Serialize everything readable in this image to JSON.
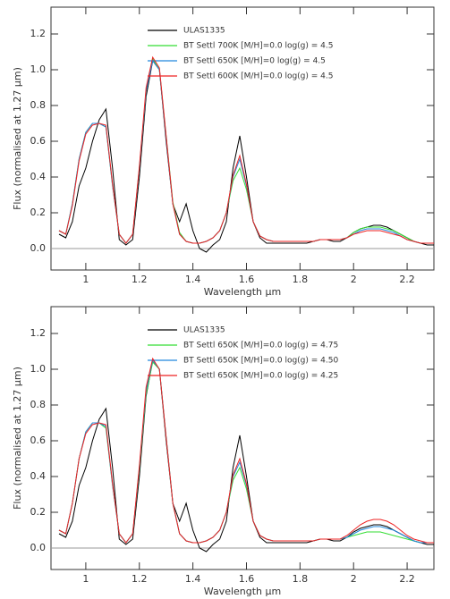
{
  "chart_data": [
    {
      "type": "line",
      "x_label": "Wavelength μm",
      "y_label": "Flux (normalised at 1.27 μm)",
      "xlim": [
        0.87,
        2.3
      ],
      "ylim": [
        -0.12,
        1.35
      ],
      "xticks": [
        1.0,
        1.2,
        1.4,
        1.6,
        1.8,
        2.0,
        2.2
      ],
      "yticks": [
        {
          "value": 0,
          "label": "0.0"
        },
        0.2,
        0.4,
        0.6,
        0.8,
        {
          "value": 1,
          "label": "1.0"
        },
        1.2
      ],
      "x": [
        0.9,
        0.925,
        0.95,
        0.975,
        1.0,
        1.025,
        1.05,
        1.075,
        1.1,
        1.125,
        1.15,
        1.175,
        1.2,
        1.225,
        1.25,
        1.275,
        1.3,
        1.325,
        1.35,
        1.375,
        1.4,
        1.425,
        1.45,
        1.475,
        1.5,
        1.525,
        1.55,
        1.575,
        1.6,
        1.625,
        1.65,
        1.675,
        1.7,
        1.725,
        1.75,
        1.775,
        1.8,
        1.825,
        1.85,
        1.875,
        1.9,
        1.925,
        1.95,
        1.975,
        2.0,
        2.025,
        2.05,
        2.075,
        2.1,
        2.125,
        2.15,
        2.175,
        2.2,
        2.225,
        2.25,
        2.275,
        2.3
      ],
      "series": [
        {
          "name": "ULAS1335",
          "color": "#000000",
          "values": [
            0.08,
            0.06,
            0.15,
            0.35,
            0.45,
            0.6,
            0.72,
            0.78,
            0.45,
            0.05,
            0.02,
            0.05,
            0.4,
            0.85,
            1.05,
            1.0,
            0.6,
            0.25,
            0.15,
            0.25,
            0.1,
            0.0,
            -0.02,
            0.02,
            0.05,
            0.15,
            0.45,
            0.63,
            0.4,
            0.15,
            0.06,
            0.03,
            0.03,
            0.03,
            0.03,
            0.03,
            0.03,
            0.03,
            0.04,
            0.05,
            0.05,
            0.04,
            0.04,
            0.06,
            0.09,
            0.11,
            0.12,
            0.13,
            0.13,
            0.12,
            0.1,
            0.08,
            0.06,
            0.04,
            0.03,
            0.02,
            0.02
          ]
        },
        {
          "name": "BT Settl 700K [M/H]=0.0 log(g) = 4.5",
          "color": "#33dd33",
          "values": [
            0.1,
            0.08,
            0.25,
            0.5,
            0.65,
            0.7,
            0.7,
            0.68,
            0.35,
            0.08,
            0.03,
            0.08,
            0.45,
            0.88,
            1.06,
            1.0,
            0.63,
            0.26,
            0.09,
            0.04,
            0.03,
            0.03,
            0.04,
            0.06,
            0.1,
            0.2,
            0.38,
            0.45,
            0.33,
            0.15,
            0.07,
            0.05,
            0.04,
            0.04,
            0.04,
            0.04,
            0.04,
            0.04,
            0.04,
            0.05,
            0.05,
            0.05,
            0.05,
            0.06,
            0.09,
            0.11,
            0.12,
            0.12,
            0.12,
            0.11,
            0.1,
            0.08,
            0.06,
            0.04,
            0.03,
            0.03,
            0.03
          ]
        },
        {
          "name": "BT Settl 650K [M/H]=0 log(g) = 4.5",
          "color": "#2288dd",
          "values": [
            0.1,
            0.08,
            0.25,
            0.5,
            0.65,
            0.7,
            0.7,
            0.68,
            0.35,
            0.08,
            0.03,
            0.08,
            0.45,
            0.88,
            1.05,
            1.0,
            0.62,
            0.25,
            0.08,
            0.04,
            0.03,
            0.03,
            0.04,
            0.06,
            0.1,
            0.2,
            0.4,
            0.5,
            0.35,
            0.15,
            0.07,
            0.05,
            0.04,
            0.04,
            0.04,
            0.04,
            0.04,
            0.04,
            0.04,
            0.05,
            0.05,
            0.05,
            0.05,
            0.06,
            0.08,
            0.1,
            0.11,
            0.11,
            0.11,
            0.1,
            0.09,
            0.07,
            0.05,
            0.04,
            0.03,
            0.03,
            0.03
          ]
        },
        {
          "name": "BT Settl 600K [M/H]=0.0 log(g) = 4.5",
          "color": "#ee2222",
          "values": [
            0.1,
            0.08,
            0.24,
            0.49,
            0.64,
            0.69,
            0.7,
            0.69,
            0.36,
            0.08,
            0.03,
            0.08,
            0.46,
            0.9,
            1.07,
            1.01,
            0.63,
            0.25,
            0.08,
            0.04,
            0.03,
            0.03,
            0.04,
            0.06,
            0.1,
            0.2,
            0.41,
            0.52,
            0.36,
            0.15,
            0.07,
            0.05,
            0.04,
            0.04,
            0.04,
            0.04,
            0.04,
            0.04,
            0.04,
            0.05,
            0.05,
            0.05,
            0.05,
            0.06,
            0.08,
            0.09,
            0.1,
            0.1,
            0.1,
            0.09,
            0.08,
            0.07,
            0.05,
            0.04,
            0.03,
            0.03,
            0.03
          ]
        }
      ]
    },
    {
      "type": "line",
      "x_label": "Wavelength μm",
      "y_label": "Flux (normalised at 1.27 μm)",
      "xlim": [
        0.87,
        2.3
      ],
      "ylim": [
        -0.12,
        1.35
      ],
      "xticks": [
        1.0,
        1.2,
        1.4,
        1.6,
        1.8,
        2.0,
        2.2
      ],
      "yticks": [
        {
          "value": 0,
          "label": "0.0"
        },
        0.2,
        0.4,
        0.6,
        0.8,
        {
          "value": 1,
          "label": "1.0"
        },
        1.2
      ],
      "x": [
        0.9,
        0.925,
        0.95,
        0.975,
        1.0,
        1.025,
        1.05,
        1.075,
        1.1,
        1.125,
        1.15,
        1.175,
        1.2,
        1.225,
        1.25,
        1.275,
        1.3,
        1.325,
        1.35,
        1.375,
        1.4,
        1.425,
        1.45,
        1.475,
        1.5,
        1.525,
        1.55,
        1.575,
        1.6,
        1.625,
        1.65,
        1.675,
        1.7,
        1.725,
        1.75,
        1.775,
        1.8,
        1.825,
        1.85,
        1.875,
        1.9,
        1.925,
        1.95,
        1.975,
        2.0,
        2.025,
        2.05,
        2.075,
        2.1,
        2.125,
        2.15,
        2.175,
        2.2,
        2.225,
        2.25,
        2.275,
        2.3
      ],
      "series": [
        {
          "name": "ULAS1335",
          "color": "#000000",
          "values": [
            0.08,
            0.06,
            0.15,
            0.35,
            0.45,
            0.6,
            0.72,
            0.78,
            0.45,
            0.05,
            0.02,
            0.05,
            0.4,
            0.85,
            1.05,
            1.0,
            0.6,
            0.25,
            0.15,
            0.25,
            0.1,
            0.0,
            -0.02,
            0.02,
            0.05,
            0.15,
            0.45,
            0.63,
            0.4,
            0.15,
            0.06,
            0.03,
            0.03,
            0.03,
            0.03,
            0.03,
            0.03,
            0.03,
            0.04,
            0.05,
            0.05,
            0.04,
            0.04,
            0.06,
            0.09,
            0.11,
            0.12,
            0.13,
            0.13,
            0.12,
            0.1,
            0.08,
            0.06,
            0.04,
            0.03,
            0.02,
            0.02
          ]
        },
        {
          "name": "BT Settl 650K [M/H]=0.0 log(g) = 4.75",
          "color": "#33dd33",
          "values": [
            0.1,
            0.08,
            0.25,
            0.5,
            0.65,
            0.7,
            0.7,
            0.67,
            0.35,
            0.08,
            0.03,
            0.08,
            0.44,
            0.86,
            1.04,
            1.0,
            0.62,
            0.25,
            0.08,
            0.04,
            0.03,
            0.03,
            0.04,
            0.06,
            0.1,
            0.2,
            0.38,
            0.45,
            0.33,
            0.15,
            0.07,
            0.05,
            0.04,
            0.04,
            0.04,
            0.04,
            0.04,
            0.04,
            0.04,
            0.05,
            0.05,
            0.05,
            0.05,
            0.06,
            0.07,
            0.08,
            0.09,
            0.09,
            0.09,
            0.08,
            0.07,
            0.06,
            0.05,
            0.04,
            0.03,
            0.03,
            0.03
          ]
        },
        {
          "name": "BT Settl 650K [M/H]=0.0 log(g) = 4.50",
          "color": "#2288dd",
          "values": [
            0.1,
            0.08,
            0.25,
            0.5,
            0.65,
            0.7,
            0.7,
            0.68,
            0.35,
            0.08,
            0.03,
            0.08,
            0.45,
            0.88,
            1.05,
            1.0,
            0.62,
            0.25,
            0.08,
            0.04,
            0.03,
            0.03,
            0.04,
            0.06,
            0.1,
            0.2,
            0.4,
            0.48,
            0.35,
            0.15,
            0.07,
            0.05,
            0.04,
            0.04,
            0.04,
            0.04,
            0.04,
            0.04,
            0.04,
            0.05,
            0.05,
            0.05,
            0.05,
            0.06,
            0.08,
            0.1,
            0.11,
            0.12,
            0.12,
            0.11,
            0.1,
            0.08,
            0.06,
            0.04,
            0.03,
            0.03,
            0.03
          ]
        },
        {
          "name": "BT Settl 650K [M/H]=0.0 log(g) = 4.25",
          "color": "#ee2222",
          "values": [
            0.1,
            0.08,
            0.25,
            0.5,
            0.64,
            0.69,
            0.7,
            0.69,
            0.36,
            0.08,
            0.03,
            0.08,
            0.46,
            0.9,
            1.06,
            1.0,
            0.62,
            0.25,
            0.08,
            0.04,
            0.03,
            0.03,
            0.04,
            0.06,
            0.1,
            0.2,
            0.41,
            0.5,
            0.36,
            0.15,
            0.07,
            0.05,
            0.04,
            0.04,
            0.04,
            0.04,
            0.04,
            0.04,
            0.04,
            0.05,
            0.05,
            0.05,
            0.05,
            0.07,
            0.1,
            0.13,
            0.15,
            0.16,
            0.16,
            0.15,
            0.13,
            0.1,
            0.07,
            0.05,
            0.04,
            0.03,
            0.03
          ]
        }
      ]
    }
  ]
}
